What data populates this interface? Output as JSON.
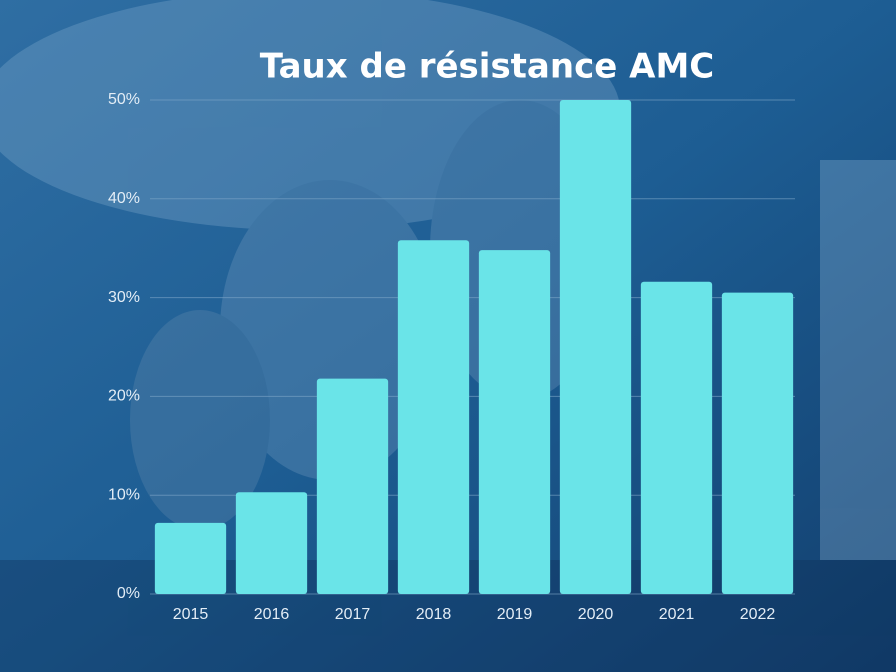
{
  "chart_data": {
    "type": "bar",
    "title": "Taux de résistance AMC",
    "categories": [
      "2015",
      "2016",
      "2017",
      "2018",
      "2019",
      "2020",
      "2021",
      "2022"
    ],
    "values": [
      7.2,
      10.3,
      21.8,
      35.8,
      34.8,
      50,
      31.6,
      30.5
    ],
    "color": "#6ae4e8",
    "ylim": [
      0,
      50
    ],
    "yticks": [
      {
        "value": 0,
        "label": "0%"
      },
      {
        "value": 10,
        "label": "10%"
      },
      {
        "value": 20,
        "label": "20%"
      },
      {
        "value": 30,
        "label": "30%"
      },
      {
        "value": 40,
        "label": "40%"
      },
      {
        "value": 50,
        "label": "50%"
      }
    ],
    "grid": true
  }
}
